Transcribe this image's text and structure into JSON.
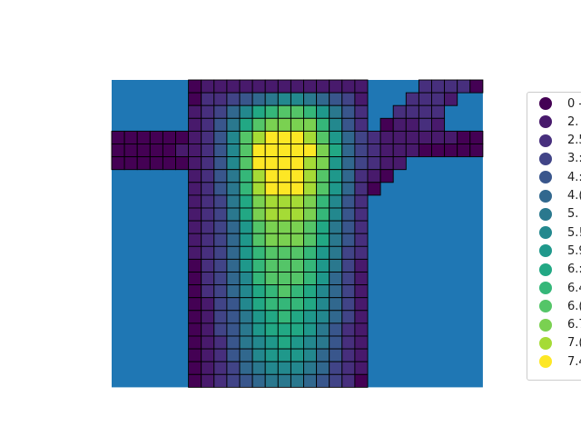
{
  "map": {
    "background_color": "#1f77b4",
    "cell_edge_color": "#000000",
    "scheme": "viridis",
    "grid": {
      "rows": 24,
      "cols": 29,
      "values": [
        [
          null,
          null,
          null,
          null,
          null,
          null,
          0,
          1,
          1,
          1,
          1,
          1,
          1,
          1,
          1,
          1,
          1,
          1,
          1,
          1,
          null,
          null,
          null,
          null,
          2,
          2,
          2,
          2,
          0
        ],
        [
          null,
          null,
          null,
          null,
          null,
          null,
          0,
          2,
          2,
          3,
          4,
          5,
          6,
          7,
          7,
          6,
          5,
          4,
          3,
          1,
          null,
          null,
          null,
          2,
          2,
          2,
          1,
          null,
          null
        ],
        [
          null,
          null,
          null,
          null,
          null,
          null,
          1,
          2,
          3,
          5,
          7,
          9,
          10,
          11,
          11,
          10,
          8,
          6,
          4,
          2,
          null,
          null,
          2,
          2,
          2,
          2,
          null,
          null,
          null
        ],
        [
          null,
          null,
          null,
          null,
          null,
          null,
          1,
          2,
          4,
          6,
          9,
          11,
          12,
          12,
          12,
          12,
          10,
          7,
          4,
          2,
          null,
          0,
          1,
          1,
          2,
          1,
          null,
          null,
          null
        ],
        [
          0,
          0,
          0,
          0,
          0,
          0,
          1,
          2,
          4,
          7,
          11,
          13,
          14,
          14,
          14,
          13,
          11,
          8,
          5,
          3,
          2,
          1,
          1,
          1,
          1,
          1,
          1,
          0,
          0
        ],
        [
          0,
          0,
          0,
          0,
          0,
          1,
          1,
          2,
          4,
          7,
          11,
          14,
          14,
          14,
          14,
          14,
          12,
          9,
          5,
          3,
          2,
          1,
          1,
          1,
          0,
          0,
          0,
          0,
          0
        ],
        [
          0,
          0,
          0,
          0,
          0,
          0,
          1,
          2,
          4,
          7,
          11,
          14,
          14,
          14,
          14,
          13,
          12,
          8,
          5,
          3,
          2,
          1,
          1,
          null,
          null,
          null,
          null,
          null,
          null
        ],
        [
          null,
          null,
          null,
          null,
          null,
          null,
          1,
          2,
          4,
          6,
          10,
          13,
          14,
          14,
          14,
          13,
          11,
          8,
          5,
          2,
          1,
          0,
          null,
          null,
          null,
          null,
          null,
          null,
          null
        ],
        [
          null,
          null,
          null,
          null,
          null,
          null,
          1,
          2,
          4,
          6,
          10,
          13,
          14,
          14,
          14,
          13,
          11,
          8,
          5,
          2,
          0,
          null,
          null,
          null,
          null,
          null,
          null,
          null,
          null
        ],
        [
          null,
          null,
          null,
          null,
          null,
          null,
          1,
          2,
          3,
          6,
          9,
          12,
          13,
          13,
          13,
          12,
          10,
          7,
          4,
          2,
          null,
          null,
          null,
          null,
          null,
          null,
          null,
          null,
          null
        ],
        [
          null,
          null,
          null,
          null,
          null,
          null,
          1,
          2,
          3,
          6,
          9,
          12,
          13,
          13,
          13,
          12,
          10,
          7,
          4,
          2,
          null,
          null,
          null,
          null,
          null,
          null,
          null,
          null,
          null
        ],
        [
          null,
          null,
          null,
          null,
          null,
          null,
          1,
          2,
          3,
          5,
          8,
          11,
          12,
          12,
          12,
          11,
          9,
          6,
          4,
          2,
          null,
          null,
          null,
          null,
          null,
          null,
          null,
          null,
          null
        ],
        [
          null,
          null,
          null,
          null,
          null,
          null,
          1,
          2,
          3,
          5,
          8,
          11,
          12,
          12,
          12,
          11,
          9,
          6,
          4,
          2,
          null,
          null,
          null,
          null,
          null,
          null,
          null,
          null,
          null
        ],
        [
          null,
          null,
          null,
          null,
          null,
          null,
          1,
          2,
          3,
          5,
          8,
          10,
          11,
          11,
          11,
          10,
          8,
          6,
          3,
          2,
          null,
          null,
          null,
          null,
          null,
          null,
          null,
          null,
          null
        ],
        [
          null,
          null,
          null,
          null,
          null,
          null,
          0,
          2,
          3,
          5,
          8,
          10,
          11,
          11,
          11,
          10,
          8,
          6,
          3,
          1,
          null,
          null,
          null,
          null,
          null,
          null,
          null,
          null,
          null
        ],
        [
          null,
          null,
          null,
          null,
          null,
          null,
          0,
          2,
          3,
          5,
          7,
          10,
          11,
          11,
          11,
          10,
          8,
          5,
          3,
          1,
          null,
          null,
          null,
          null,
          null,
          null,
          null,
          null,
          null
        ],
        [
          null,
          null,
          null,
          null,
          null,
          null,
          0,
          2,
          3,
          5,
          7,
          9,
          10,
          11,
          10,
          9,
          7,
          5,
          3,
          1,
          null,
          null,
          null,
          null,
          null,
          null,
          null,
          null,
          null
        ],
        [
          null,
          null,
          null,
          null,
          null,
          null,
          0,
          1,
          3,
          4,
          7,
          9,
          10,
          10,
          10,
          9,
          7,
          5,
          3,
          1,
          null,
          null,
          null,
          null,
          null,
          null,
          null,
          null,
          null
        ],
        [
          null,
          null,
          null,
          null,
          null,
          null,
          0,
          1,
          3,
          4,
          6,
          8,
          9,
          10,
          9,
          8,
          7,
          5,
          3,
          1,
          null,
          null,
          null,
          null,
          null,
          null,
          null,
          null,
          null
        ],
        [
          null,
          null,
          null,
          null,
          null,
          null,
          0,
          1,
          3,
          4,
          6,
          8,
          9,
          9,
          9,
          8,
          6,
          4,
          2,
          1,
          null,
          null,
          null,
          null,
          null,
          null,
          null,
          null,
          null
        ],
        [
          null,
          null,
          null,
          null,
          null,
          null,
          0,
          1,
          2,
          4,
          6,
          7,
          8,
          9,
          8,
          7,
          6,
          4,
          2,
          1,
          null,
          null,
          null,
          null,
          null,
          null,
          null,
          null,
          null
        ],
        [
          null,
          null,
          null,
          null,
          null,
          null,
          0,
          1,
          2,
          4,
          5,
          7,
          8,
          8,
          8,
          7,
          5,
          4,
          2,
          1,
          null,
          null,
          null,
          null,
          null,
          null,
          null,
          null,
          null
        ],
        [
          null,
          null,
          null,
          null,
          null,
          null,
          0,
          1,
          2,
          3,
          5,
          6,
          7,
          7,
          7,
          6,
          5,
          3,
          2,
          1,
          null,
          null,
          null,
          null,
          null,
          null,
          null,
          null,
          null
        ],
        [
          null,
          null,
          null,
          null,
          null,
          null,
          0,
          1,
          2,
          3,
          4,
          5,
          6,
          6,
          6,
          5,
          4,
          3,
          2,
          0,
          null,
          null,
          null,
          null,
          null,
          null,
          null,
          null,
          null
        ]
      ]
    }
  },
  "legend": {
    "entries": [
      {
        "label": "0 -",
        "color": "#440154"
      },
      {
        "label": "2.",
        "color": "#481a6c"
      },
      {
        "label": "2.5",
        "color": "#472f7d"
      },
      {
        "label": "3.:",
        "color": "#414487"
      },
      {
        "label": "4.:",
        "color": "#39568c"
      },
      {
        "label": "4.(",
        "color": "#31688e"
      },
      {
        "label": "5.",
        "color": "#2a788e"
      },
      {
        "label": "5.!",
        "color": "#23888e"
      },
      {
        "label": "5.9",
        "color": "#1f988b"
      },
      {
        "label": "6.:",
        "color": "#22a884"
      },
      {
        "label": "6.4",
        "color": "#35b779"
      },
      {
        "label": "6.(",
        "color": "#54c568"
      },
      {
        "label": "6.7",
        "color": "#7ad151"
      },
      {
        "label": "7.(",
        "color": "#a5db36"
      },
      {
        "label": "7.4",
        "color": "#fde725"
      }
    ]
  }
}
